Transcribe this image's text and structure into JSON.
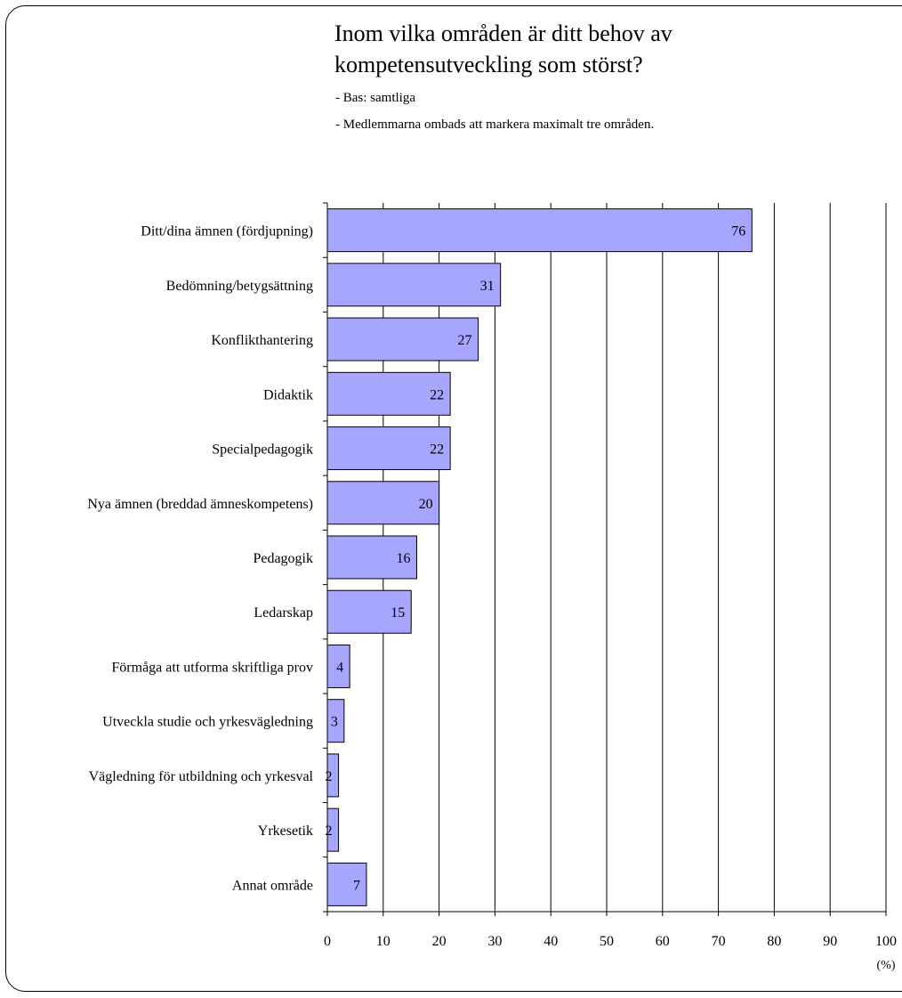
{
  "chart_data": {
    "type": "bar",
    "orientation": "horizontal",
    "title": "Inom vilka områden är ditt behov av kompetensutveckling som störst?",
    "notes": [
      "- Bas: samtliga",
      "- Medlemmarna ombads att markera maximalt tre områden."
    ],
    "categories": [
      "Ditt/dina ämnen (fördjupning)",
      "Bedömning/betygsättning",
      "Konflikthantering",
      "Didaktik",
      "Specialpedagogik",
      "Nya ämnen (breddad ämneskompetens)",
      "Pedagogik",
      "Ledarskap",
      "Förmåga att utforma skriftliga prov",
      "Utveckla studie och yrkesvägledning",
      "Vägledning för utbildning och yrkesval",
      "Yrkesetik",
      "Annat område"
    ],
    "values": [
      76,
      31,
      27,
      22,
      22,
      20,
      16,
      15,
      4,
      3,
      2,
      2,
      7
    ],
    "xlim": [
      0,
      100
    ],
    "xticks": [
      0,
      10,
      20,
      30,
      40,
      50,
      60,
      70,
      80,
      90,
      100
    ],
    "xlabel": "(%)",
    "ylabel": "",
    "grid": "vertical",
    "legend": "none",
    "bar_color": "#a6a6ff",
    "bar_edge_color": "#000000"
  }
}
